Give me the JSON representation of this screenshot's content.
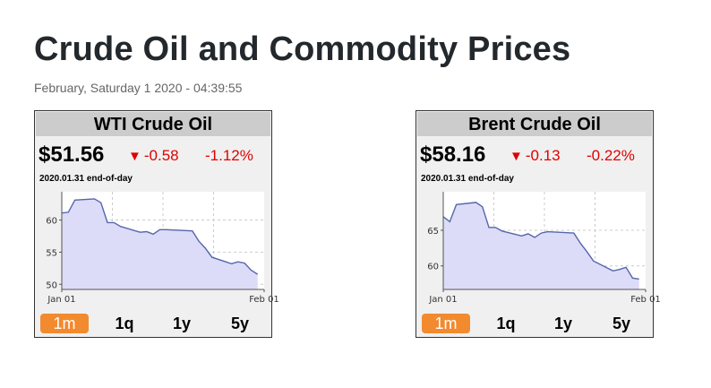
{
  "page": {
    "title": "Crude Oil and Commodity Prices",
    "timestamp": "February, Saturday 1 2020 - 04:39:55"
  },
  "colors": {
    "down": "#e00000",
    "active_tab": "#f28a30",
    "area_fill": "#dcdcf8",
    "line": "#5566aa"
  },
  "widgets": [
    {
      "name": "WTI Crude Oil",
      "price": "$51.56",
      "change": "-0.58",
      "change_icon": "down-triangle-icon",
      "percent": "-1.12%",
      "date_note": "2020.01.31 end-of-day",
      "tabs": [
        "1m",
        "1q",
        "1y",
        "5y"
      ],
      "active_tab": "1m"
    },
    {
      "name": "Brent Crude Oil",
      "price": "$58.16",
      "change": "-0.13",
      "change_icon": "down-triangle-icon",
      "percent": "-0.22%",
      "date_note": "2020.01.31 end-of-day",
      "tabs": [
        "1m",
        "1q",
        "1y",
        "5y"
      ],
      "active_tab": "1m"
    }
  ],
  "chart_data": [
    {
      "type": "area",
      "title": "WTI Crude Oil",
      "x": [
        "2020-01-01",
        "2020-01-02",
        "2020-01-03",
        "2020-01-06",
        "2020-01-07",
        "2020-01-08",
        "2020-01-09",
        "2020-01-10",
        "2020-01-13",
        "2020-01-14",
        "2020-01-15",
        "2020-01-16",
        "2020-01-17",
        "2020-01-21",
        "2020-01-22",
        "2020-01-23",
        "2020-01-24",
        "2020-01-27",
        "2020-01-28",
        "2020-01-29",
        "2020-01-30",
        "2020-01-31"
      ],
      "values": [
        61.1,
        61.2,
        63.1,
        63.3,
        62.7,
        59.6,
        59.6,
        59.0,
        58.1,
        58.2,
        57.8,
        58.5,
        58.5,
        58.3,
        56.7,
        55.6,
        54.2,
        53.2,
        53.5,
        53.3,
        52.2,
        51.56
      ],
      "x_ticks": [
        "Jan 01",
        "Feb 01"
      ],
      "y_ticks": [
        50,
        55,
        60
      ],
      "ylim": [
        49.2,
        64.4
      ],
      "xlim": [
        "2020-01-01",
        "2020-02-01"
      ],
      "grid": true
    },
    {
      "type": "area",
      "title": "Brent Crude Oil",
      "x": [
        "2020-01-01",
        "2020-01-02",
        "2020-01-03",
        "2020-01-06",
        "2020-01-07",
        "2020-01-08",
        "2020-01-09",
        "2020-01-10",
        "2020-01-13",
        "2020-01-14",
        "2020-01-15",
        "2020-01-16",
        "2020-01-17",
        "2020-01-21",
        "2020-01-22",
        "2020-01-23",
        "2020-01-24",
        "2020-01-27",
        "2020-01-28",
        "2020-01-29",
        "2020-01-30",
        "2020-01-31"
      ],
      "values": [
        66.9,
        66.2,
        68.6,
        68.9,
        68.3,
        65.4,
        65.4,
        64.9,
        64.2,
        64.5,
        64.0,
        64.6,
        64.8,
        64.6,
        63.2,
        62.0,
        60.7,
        59.3,
        59.5,
        59.8,
        58.3,
        58.16
      ],
      "x_ticks": [
        "Jan 01",
        "Feb 01"
      ],
      "y_ticks": [
        60,
        65
      ],
      "ylim": [
        56.7,
        70.4
      ],
      "xlim": [
        "2020-01-01",
        "2020-02-01"
      ],
      "grid": true
    }
  ]
}
